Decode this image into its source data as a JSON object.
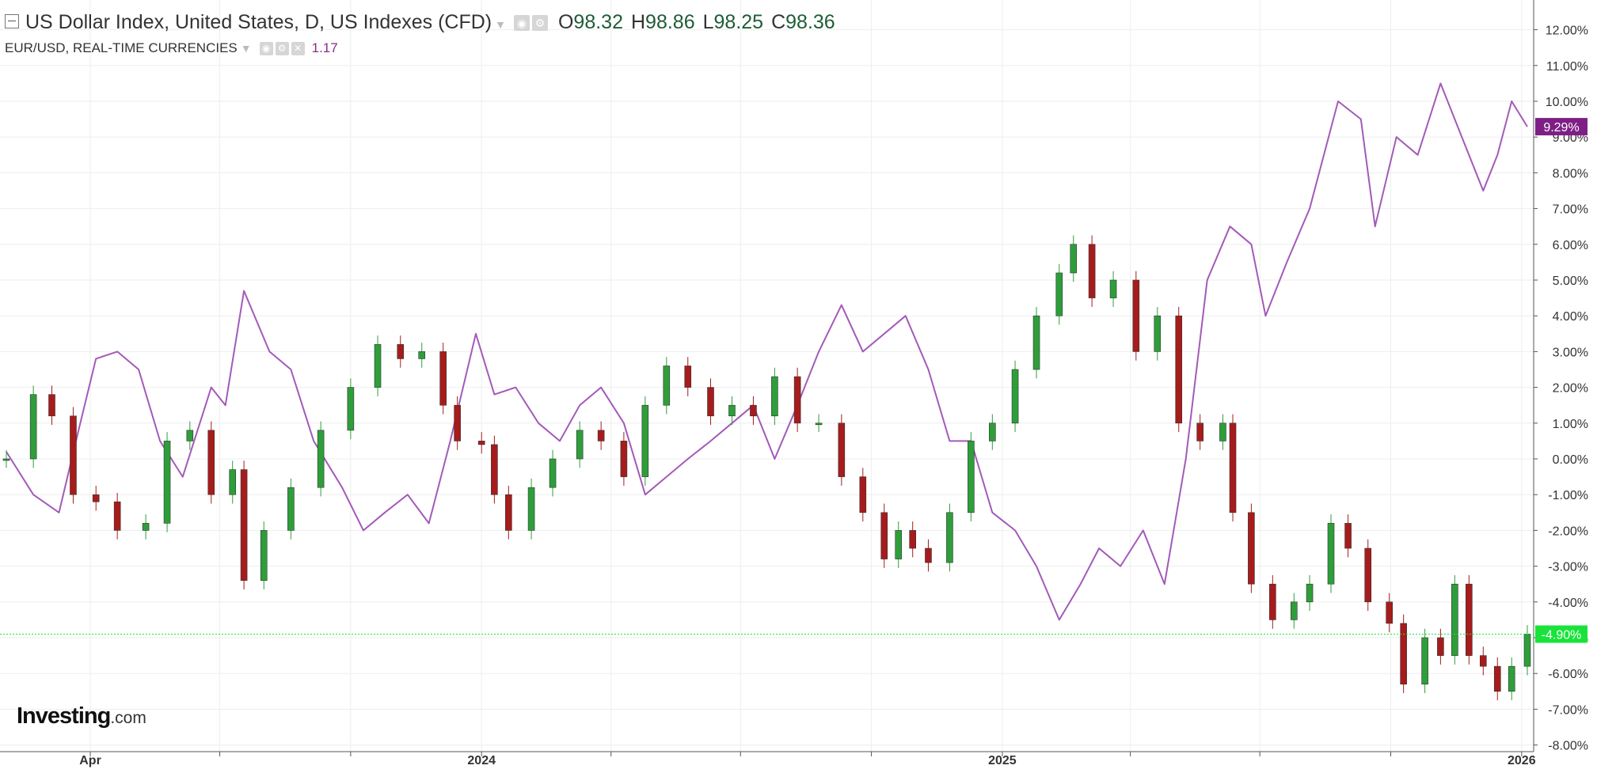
{
  "legend": {
    "main_title": "US Dollar Index, United States, D, US Indexes (CFD)",
    "open_label": "O",
    "open": "98.32",
    "high_label": "H",
    "high": "98.86",
    "low_label": "L",
    "low": "98.25",
    "close_label": "C",
    "close": "98.36",
    "secondary_title": "EUR/USD, REAL-TIME CURRENCIES",
    "secondary_value": "1.17"
  },
  "logo": {
    "main": "Investing",
    "tld": ".com"
  },
  "colors": {
    "up": "#2e9e3a",
    "down": "#a61c1c",
    "compare_line": "#a35ab8",
    "compare_badge": "#7e1f86",
    "current_badge": "#19e33a",
    "grid": "#eeeeee"
  },
  "icons": [
    "collapse-icon",
    "eye-icon",
    "gear-icon",
    "close-icon",
    "caret-down-icon"
  ],
  "chart_data": {
    "type": "line",
    "y_format": "percent change",
    "ylim": [
      -8,
      12.5
    ],
    "yticks": [
      "12.00%",
      "11.00%",
      "10.00%",
      "9.00%",
      "8.00%",
      "7.00%",
      "6.00%",
      "5.00%",
      "4.00%",
      "3.00%",
      "2.00%",
      "1.00%",
      "0.00%",
      "-1.00%",
      "-2.00%",
      "-3.00%",
      "-4.00%",
      "-5.00%",
      "-6.00%",
      "-7.00%",
      "-8.00%"
    ],
    "x_labels": [
      {
        "label": "Apr",
        "date": "2023-04-01"
      },
      {
        "label": "2024",
        "date": "2024-01-01"
      },
      {
        "label": "2025",
        "date": "2025-01-01"
      },
      {
        "label": "2026",
        "date": "2026-01-01"
      }
    ],
    "x_ticks": [
      "2023-07-01",
      "2023-10-01",
      "2024-04-01",
      "2024-07-01",
      "2024-10-01",
      "2025-04-01",
      "2025-07-01",
      "2025-10-01"
    ],
    "x_range": [
      "2023-02-01",
      "2026-01-05"
    ],
    "grid": true,
    "series": [
      {
        "name": "US Dollar Index",
        "kind": "candlestick",
        "last_value_label": "-4.90%",
        "points": [
          {
            "x": "2023-02-01",
            "y": 0.0
          },
          {
            "x": "2023-02-20",
            "y": 1.8
          },
          {
            "x": "2023-03-05",
            "y": 1.2
          },
          {
            "x": "2023-03-20",
            "y": -1.0
          },
          {
            "x": "2023-04-05",
            "y": -1.2
          },
          {
            "x": "2023-04-20",
            "y": -2.0
          },
          {
            "x": "2023-05-10",
            "y": -1.8
          },
          {
            "x": "2023-05-25",
            "y": 0.5
          },
          {
            "x": "2023-06-10",
            "y": 0.8
          },
          {
            "x": "2023-06-25",
            "y": -1.0
          },
          {
            "x": "2023-07-10",
            "y": -0.3
          },
          {
            "x": "2023-07-18",
            "y": -3.4
          },
          {
            "x": "2023-08-01",
            "y": -2.0
          },
          {
            "x": "2023-08-20",
            "y": -0.8
          },
          {
            "x": "2023-09-10",
            "y": 0.8
          },
          {
            "x": "2023-10-01",
            "y": 2.0
          },
          {
            "x": "2023-10-20",
            "y": 3.2
          },
          {
            "x": "2023-11-05",
            "y": 2.8
          },
          {
            "x": "2023-11-20",
            "y": 3.0
          },
          {
            "x": "2023-12-05",
            "y": 1.5
          },
          {
            "x": "2023-12-15",
            "y": 0.5
          },
          {
            "x": "2024-01-01",
            "y": 0.4
          },
          {
            "x": "2024-01-10",
            "y": -1.0
          },
          {
            "x": "2024-01-20",
            "y": -2.0
          },
          {
            "x": "2024-02-05",
            "y": -0.8
          },
          {
            "x": "2024-02-20",
            "y": 0.0
          },
          {
            "x": "2024-03-10",
            "y": 0.8
          },
          {
            "x": "2024-03-25",
            "y": 0.5
          },
          {
            "x": "2024-04-10",
            "y": -0.5
          },
          {
            "x": "2024-04-25",
            "y": 1.5
          },
          {
            "x": "2024-05-10",
            "y": 2.6
          },
          {
            "x": "2024-05-25",
            "y": 2.0
          },
          {
            "x": "2024-06-10",
            "y": 1.2
          },
          {
            "x": "2024-06-25",
            "y": 1.5
          },
          {
            "x": "2024-07-10",
            "y": 1.2
          },
          {
            "x": "2024-07-25",
            "y": 2.3
          },
          {
            "x": "2024-08-10",
            "y": 1.0
          },
          {
            "x": "2024-08-25",
            "y": 1.0
          },
          {
            "x": "2024-09-10",
            "y": -0.5
          },
          {
            "x": "2024-09-25",
            "y": -1.5
          },
          {
            "x": "2024-10-10",
            "y": -2.8
          },
          {
            "x": "2024-10-20",
            "y": -2.0
          },
          {
            "x": "2024-10-30",
            "y": -2.5
          },
          {
            "x": "2024-11-10",
            "y": -2.9
          },
          {
            "x": "2024-11-25",
            "y": -1.5
          },
          {
            "x": "2024-12-10",
            "y": 0.5
          },
          {
            "x": "2024-12-25",
            "y": 1.0
          },
          {
            "x": "2025-01-10",
            "y": 2.5
          },
          {
            "x": "2025-01-25",
            "y": 4.0
          },
          {
            "x": "2025-02-10",
            "y": 5.2
          },
          {
            "x": "2025-02-20",
            "y": 6.0
          },
          {
            "x": "2025-03-05",
            "y": 4.5
          },
          {
            "x": "2025-03-20",
            "y": 5.0
          },
          {
            "x": "2025-04-05",
            "y": 3.0
          },
          {
            "x": "2025-04-20",
            "y": 4.0
          },
          {
            "x": "2025-05-05",
            "y": 1.0
          },
          {
            "x": "2025-05-20",
            "y": 0.5
          },
          {
            "x": "2025-06-05",
            "y": 1.0
          },
          {
            "x": "2025-06-12",
            "y": -1.5
          },
          {
            "x": "2025-06-25",
            "y": -3.5
          },
          {
            "x": "2025-07-10",
            "y": -4.5
          },
          {
            "x": "2025-07-25",
            "y": -4.0
          },
          {
            "x": "2025-08-05",
            "y": -3.5
          },
          {
            "x": "2025-08-20",
            "y": -1.8
          },
          {
            "x": "2025-09-01",
            "y": -2.5
          },
          {
            "x": "2025-09-15",
            "y": -4.0
          },
          {
            "x": "2025-09-30",
            "y": -4.6
          },
          {
            "x": "2025-10-10",
            "y": -6.3
          },
          {
            "x": "2025-10-25",
            "y": -5.0
          },
          {
            "x": "2025-11-05",
            "y": -5.5
          },
          {
            "x": "2025-11-15",
            "y": -3.5
          },
          {
            "x": "2025-11-25",
            "y": -5.5
          },
          {
            "x": "2025-12-05",
            "y": -5.8
          },
          {
            "x": "2025-12-15",
            "y": -6.5
          },
          {
            "x": "2025-12-25",
            "y": -5.8
          },
          {
            "x": "2026-01-05",
            "y": -4.9
          }
        ]
      },
      {
        "name": "EUR/USD",
        "kind": "line",
        "last_value_label": "9.29%",
        "points": [
          {
            "x": "2023-02-01",
            "y": 0.2
          },
          {
            "x": "2023-02-20",
            "y": -1.0
          },
          {
            "x": "2023-03-10",
            "y": -1.5
          },
          {
            "x": "2023-03-25",
            "y": 1.0
          },
          {
            "x": "2023-04-05",
            "y": 2.8
          },
          {
            "x": "2023-04-20",
            "y": 3.0
          },
          {
            "x": "2023-05-05",
            "y": 2.5
          },
          {
            "x": "2023-05-20",
            "y": 0.5
          },
          {
            "x": "2023-06-05",
            "y": -0.5
          },
          {
            "x": "2023-06-25",
            "y": 2.0
          },
          {
            "x": "2023-07-05",
            "y": 1.5
          },
          {
            "x": "2023-07-18",
            "y": 4.7
          },
          {
            "x": "2023-08-05",
            "y": 3.0
          },
          {
            "x": "2023-08-20",
            "y": 2.5
          },
          {
            "x": "2023-09-05",
            "y": 0.5
          },
          {
            "x": "2023-09-25",
            "y": -0.8
          },
          {
            "x": "2023-10-10",
            "y": -2.0
          },
          {
            "x": "2023-10-25",
            "y": -1.5
          },
          {
            "x": "2023-11-10",
            "y": -1.0
          },
          {
            "x": "2023-11-25",
            "y": -1.8
          },
          {
            "x": "2023-12-10",
            "y": 0.5
          },
          {
            "x": "2023-12-28",
            "y": 3.5
          },
          {
            "x": "2024-01-10",
            "y": 1.8
          },
          {
            "x": "2024-01-25",
            "y": 2.0
          },
          {
            "x": "2024-02-10",
            "y": 1.0
          },
          {
            "x": "2024-02-25",
            "y": 0.5
          },
          {
            "x": "2024-03-10",
            "y": 1.5
          },
          {
            "x": "2024-03-25",
            "y": 2.0
          },
          {
            "x": "2024-04-10",
            "y": 1.0
          },
          {
            "x": "2024-04-25",
            "y": -1.0
          },
          {
            "x": "2024-05-10",
            "y": -0.5
          },
          {
            "x": "2024-05-25",
            "y": 0.0
          },
          {
            "x": "2024-06-10",
            "y": 0.5
          },
          {
            "x": "2024-06-25",
            "y": 1.0
          },
          {
            "x": "2024-07-10",
            "y": 1.5
          },
          {
            "x": "2024-07-25",
            "y": 0.0
          },
          {
            "x": "2024-08-10",
            "y": 1.5
          },
          {
            "x": "2024-08-25",
            "y": 3.0
          },
          {
            "x": "2024-09-10",
            "y": 4.3
          },
          {
            "x": "2024-09-25",
            "y": 3.0
          },
          {
            "x": "2024-10-10",
            "y": 3.5
          },
          {
            "x": "2024-10-25",
            "y": 4.0
          },
          {
            "x": "2024-11-10",
            "y": 2.5
          },
          {
            "x": "2024-11-25",
            "y": 0.5
          },
          {
            "x": "2024-12-10",
            "y": 0.5
          },
          {
            "x": "2024-12-25",
            "y": -1.5
          },
          {
            "x": "2025-01-10",
            "y": -2.0
          },
          {
            "x": "2025-01-25",
            "y": -3.0
          },
          {
            "x": "2025-02-10",
            "y": -4.5
          },
          {
            "x": "2025-02-25",
            "y": -3.5
          },
          {
            "x": "2025-03-10",
            "y": -2.5
          },
          {
            "x": "2025-03-25",
            "y": -3.0
          },
          {
            "x": "2025-04-10",
            "y": -2.0
          },
          {
            "x": "2025-04-25",
            "y": -3.5
          },
          {
            "x": "2025-05-10",
            "y": 0.0
          },
          {
            "x": "2025-05-25",
            "y": 5.0
          },
          {
            "x": "2025-06-10",
            "y": 6.5
          },
          {
            "x": "2025-06-25",
            "y": 6.0
          },
          {
            "x": "2025-07-05",
            "y": 4.0
          },
          {
            "x": "2025-07-20",
            "y": 5.5
          },
          {
            "x": "2025-08-05",
            "y": 7.0
          },
          {
            "x": "2025-08-25",
            "y": 10.0
          },
          {
            "x": "2025-09-10",
            "y": 9.5
          },
          {
            "x": "2025-09-20",
            "y": 6.5
          },
          {
            "x": "2025-10-05",
            "y": 9.0
          },
          {
            "x": "2025-10-20",
            "y": 8.5
          },
          {
            "x": "2025-11-05",
            "y": 10.5
          },
          {
            "x": "2025-11-20",
            "y": 9.0
          },
          {
            "x": "2025-12-05",
            "y": 7.5
          },
          {
            "x": "2025-12-15",
            "y": 8.5
          },
          {
            "x": "2025-12-25",
            "y": 10.0
          },
          {
            "x": "2026-01-05",
            "y": 9.29
          }
        ]
      }
    ]
  }
}
